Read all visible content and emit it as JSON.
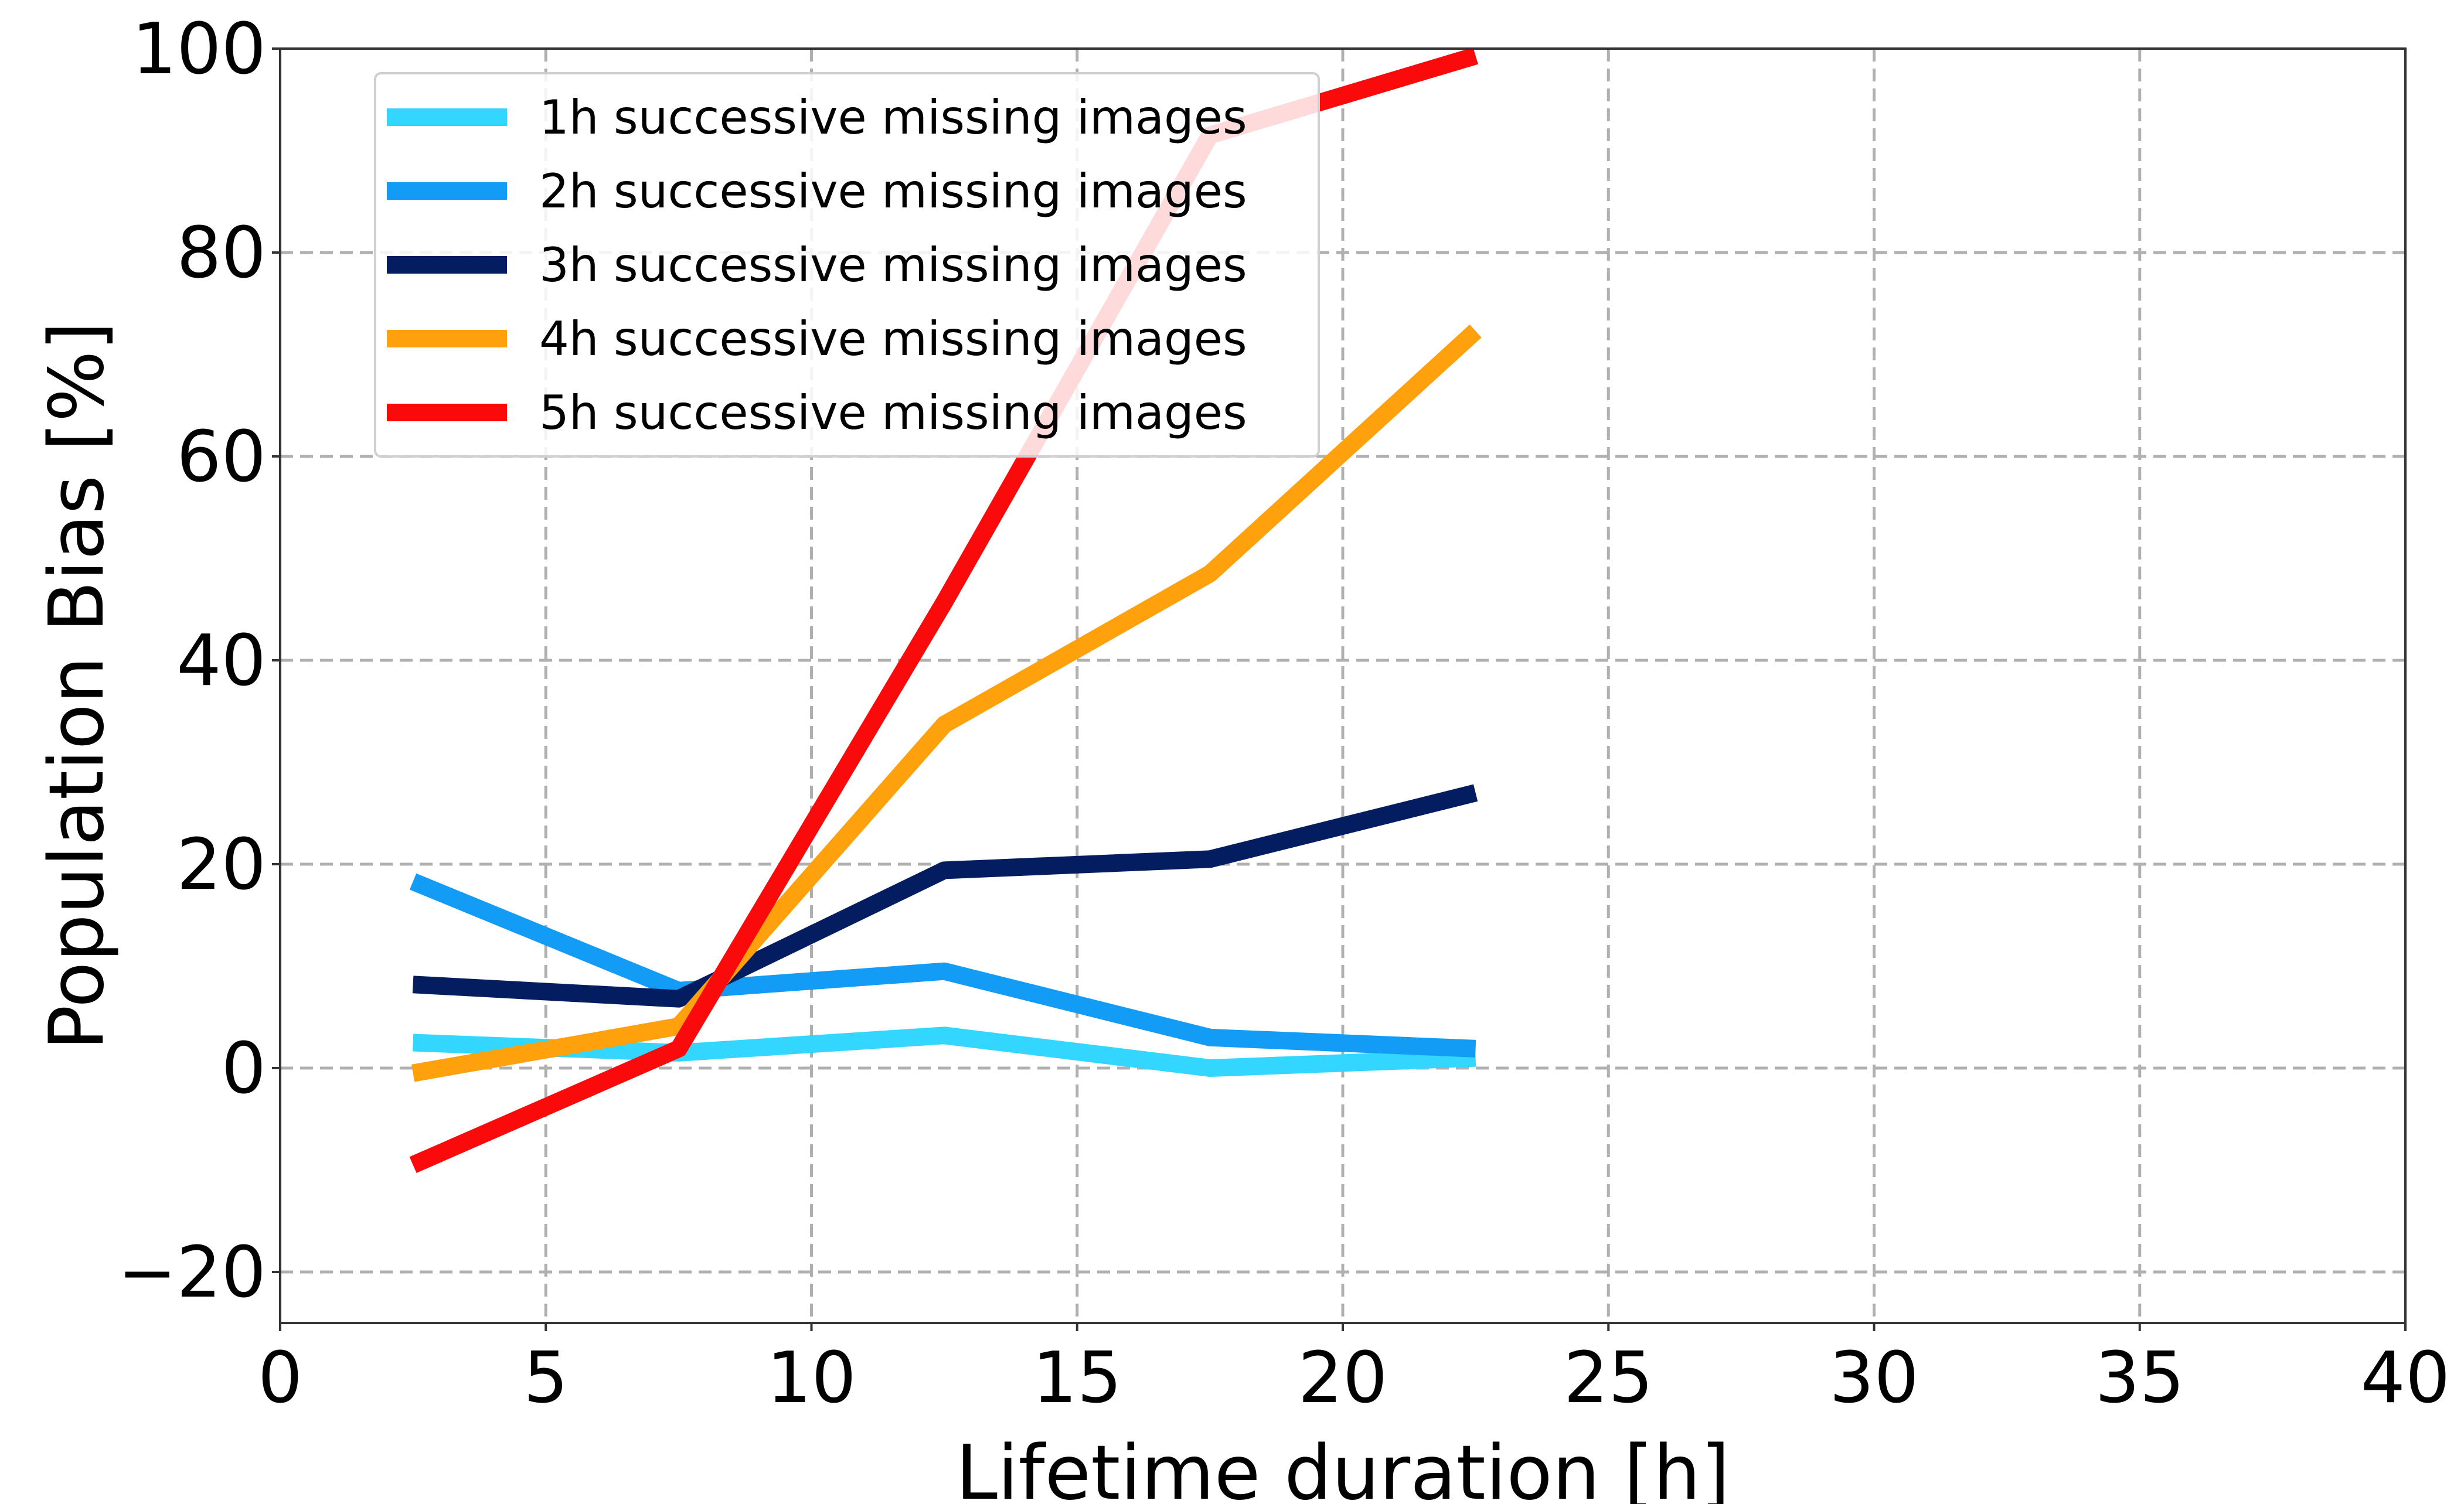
{
  "chart_data": {
    "type": "line",
    "title": "",
    "xlabel": "Lifetime duration [h]",
    "ylabel": "Population Bias [%]",
    "xlim": [
      0,
      40
    ],
    "ylim": [
      -25,
      100
    ],
    "xticks": [
      0,
      5,
      10,
      15,
      20,
      25,
      30,
      35,
      40
    ],
    "xtick_labels": [
      "0",
      "5",
      "10",
      "15",
      "20",
      "25",
      "30",
      "35",
      "40"
    ],
    "yticks": [
      -20,
      0,
      20,
      40,
      60,
      80,
      100
    ],
    "ytick_labels": [
      "−20",
      "0",
      "20",
      "40",
      "60",
      "80",
      "100"
    ],
    "grid": true,
    "legend_position": "upper-left",
    "x": [
      2.5,
      7.5,
      12.5,
      17.5,
      22.5
    ],
    "series": [
      {
        "name": "1h successive missing images",
        "color": "#33d6ff",
        "values": [
          2.5,
          1.5,
          3.2,
          0.0,
          1.0
        ]
      },
      {
        "name": "2h successive missing images",
        "color": "#139cf6",
        "values": [
          18.3,
          7.6,
          9.5,
          3.0,
          1.9
        ]
      },
      {
        "name": "3h successive missing images",
        "color": "#041c60",
        "values": [
          8.2,
          6.8,
          19.4,
          20.5,
          27.0
        ]
      },
      {
        "name": "4h successive missing images",
        "color": "#ffa10c",
        "values": [
          -0.5,
          4.1,
          33.7,
          48.5,
          72.3
        ]
      },
      {
        "name": "5h successive missing images",
        "color": "#fa0a0a",
        "values": [
          -9.5,
          1.9,
          45.7,
          91.5,
          99.3
        ]
      }
    ]
  }
}
